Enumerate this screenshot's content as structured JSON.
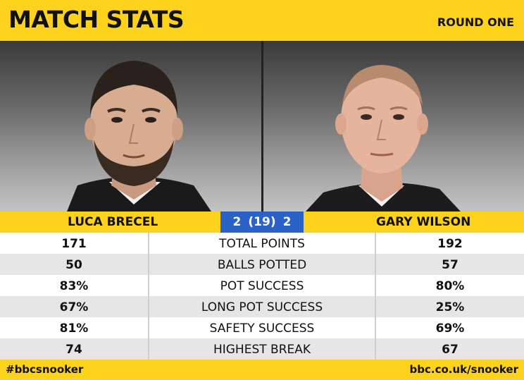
{
  "header": {
    "title": "MATCH STATS",
    "round": "ROUND ONE"
  },
  "players": {
    "left": {
      "name": "LUCA BRECEL"
    },
    "right": {
      "name": "GARY WILSON"
    }
  },
  "score": {
    "left": "2",
    "frames": "(19)",
    "right": "2"
  },
  "stats": [
    {
      "left": "171",
      "label": "TOTAL POINTS",
      "right": "192"
    },
    {
      "left": "50",
      "label": "BALLS POTTED",
      "right": "57"
    },
    {
      "left": "83%",
      "label": "POT SUCCESS",
      "right": "80%"
    },
    {
      "left": "67%",
      "label": "LONG POT SUCCESS",
      "right": "25%"
    },
    {
      "left": "81%",
      "label": "SAFETY SUCCESS",
      "right": "69%"
    },
    {
      "left": "74",
      "label": "HIGHEST BREAK",
      "right": "67"
    }
  ],
  "footer": {
    "hashtag": "#bbcsnooker",
    "url": "bbc.co.uk/snooker"
  },
  "colors": {
    "yellow": "#fcd21c",
    "score_blue": "#2b62c7",
    "stripe_grey": "#e6e6e6"
  }
}
